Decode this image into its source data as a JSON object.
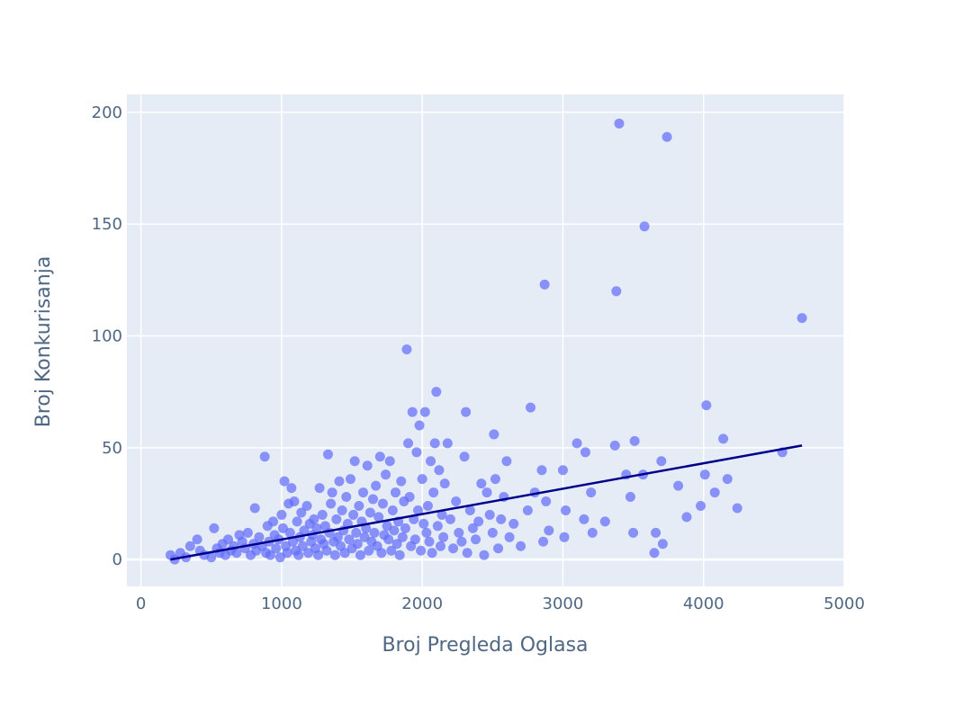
{
  "chart_data": {
    "type": "scatter",
    "xlabel": "Broj Pregleda Oglasa",
    "ylabel": "Broj Konkurisanja",
    "xlim": [
      -100,
      5000
    ],
    "ylim": [
      -12,
      208
    ],
    "x_ticks": [
      0,
      1000,
      2000,
      3000,
      4000,
      5000
    ],
    "x_tick_labels": [
      "0",
      "1000",
      "2000",
      "3000",
      "4000",
      "5000"
    ],
    "y_ticks": [
      0,
      50,
      100,
      150,
      200
    ],
    "y_tick_labels": [
      "0",
      "50",
      "100",
      "150",
      "200"
    ],
    "grid": true,
    "legend": "none",
    "colors": {
      "plot_bg": "#e5ecf6",
      "grid": "#ffffff",
      "points": "#636efa",
      "trend": "#00008b",
      "text": "#506784"
    },
    "series": [
      {
        "points": [
          [
            210,
            2
          ],
          [
            240,
            0
          ],
          [
            280,
            3
          ],
          [
            320,
            1
          ],
          [
            350,
            6
          ],
          [
            400,
            9
          ],
          [
            420,
            4
          ],
          [
            450,
            2
          ],
          [
            500,
            1
          ],
          [
            520,
            14
          ],
          [
            540,
            5
          ],
          [
            560,
            3
          ],
          [
            580,
            7
          ],
          [
            600,
            2
          ],
          [
            620,
            9
          ],
          [
            640,
            4
          ],
          [
            660,
            6
          ],
          [
            680,
            3
          ],
          [
            700,
            11
          ],
          [
            720,
            8
          ],
          [
            740,
            5
          ],
          [
            760,
            12
          ],
          [
            780,
            2
          ],
          [
            800,
            7
          ],
          [
            810,
            23
          ],
          [
            820,
            4
          ],
          [
            840,
            10
          ],
          [
            860,
            6
          ],
          [
            880,
            46
          ],
          [
            890,
            3
          ],
          [
            900,
            15
          ],
          [
            910,
            8
          ],
          [
            920,
            2
          ],
          [
            940,
            17
          ],
          [
            950,
            11
          ],
          [
            960,
            5
          ],
          [
            980,
            9
          ],
          [
            990,
            1
          ],
          [
            1000,
            20
          ],
          [
            1010,
            14
          ],
          [
            1020,
            35
          ],
          [
            1030,
            6
          ],
          [
            1040,
            3
          ],
          [
            1050,
            25
          ],
          [
            1060,
            12
          ],
          [
            1070,
            32
          ],
          [
            1080,
            8
          ],
          [
            1090,
            26
          ],
          [
            1100,
            4
          ],
          [
            1110,
            17
          ],
          [
            1120,
            2
          ],
          [
            1130,
            10
          ],
          [
            1140,
            21
          ],
          [
            1150,
            6
          ],
          [
            1160,
            13
          ],
          [
            1180,
            24
          ],
          [
            1190,
            3
          ],
          [
            1200,
            16
          ],
          [
            1210,
            8
          ],
          [
            1220,
            11
          ],
          [
            1230,
            18
          ],
          [
            1240,
            5
          ],
          [
            1250,
            14
          ],
          [
            1260,
            2
          ],
          [
            1270,
            32
          ],
          [
            1280,
            9
          ],
          [
            1290,
            20
          ],
          [
            1300,
            7
          ],
          [
            1310,
            15
          ],
          [
            1320,
            4
          ],
          [
            1330,
            47
          ],
          [
            1340,
            12
          ],
          [
            1350,
            25
          ],
          [
            1360,
            30
          ],
          [
            1370,
            8
          ],
          [
            1380,
            2
          ],
          [
            1390,
            18
          ],
          [
            1400,
            10
          ],
          [
            1410,
            35
          ],
          [
            1420,
            6
          ],
          [
            1430,
            22
          ],
          [
            1440,
            13
          ],
          [
            1450,
            3
          ],
          [
            1460,
            28
          ],
          [
            1470,
            16
          ],
          [
            1480,
            9
          ],
          [
            1490,
            36
          ],
          [
            1500,
            5
          ],
          [
            1510,
            20
          ],
          [
            1520,
            44
          ],
          [
            1530,
            12
          ],
          [
            1540,
            7
          ],
          [
            1550,
            24
          ],
          [
            1560,
            2
          ],
          [
            1570,
            17
          ],
          [
            1580,
            30
          ],
          [
            1590,
            10
          ],
          [
            1600,
            14
          ],
          [
            1610,
            42
          ],
          [
            1620,
            4
          ],
          [
            1630,
            21
          ],
          [
            1640,
            8
          ],
          [
            1650,
            27
          ],
          [
            1660,
            12
          ],
          [
            1670,
            33
          ],
          [
            1680,
            6
          ],
          [
            1690,
            19
          ],
          [
            1700,
            46
          ],
          [
            1710,
            3
          ],
          [
            1720,
            25
          ],
          [
            1730,
            11
          ],
          [
            1740,
            38
          ],
          [
            1750,
            15
          ],
          [
            1760,
            9
          ],
          [
            1770,
            44
          ],
          [
            1780,
            4
          ],
          [
            1790,
            22
          ],
          [
            1800,
            13
          ],
          [
            1810,
            30
          ],
          [
            1820,
            7
          ],
          [
            1830,
            17
          ],
          [
            1840,
            2
          ],
          [
            1850,
            35
          ],
          [
            1860,
            10
          ],
          [
            1870,
            26
          ],
          [
            1880,
            14
          ],
          [
            1890,
            94
          ],
          [
            1900,
            52
          ],
          [
            1910,
            28
          ],
          [
            1920,
            6
          ],
          [
            1930,
            66
          ],
          [
            1940,
            18
          ],
          [
            1950,
            9
          ],
          [
            1960,
            48
          ],
          [
            1970,
            22
          ],
          [
            1980,
            60
          ],
          [
            1990,
            4
          ],
          [
            2000,
            36
          ],
          [
            2010,
            16
          ],
          [
            2020,
            66
          ],
          [
            2030,
            12
          ],
          [
            2040,
            24
          ],
          [
            2050,
            8
          ],
          [
            2060,
            44
          ],
          [
            2070,
            3
          ],
          [
            2080,
            30
          ],
          [
            2090,
            52
          ],
          [
            2100,
            75
          ],
          [
            2110,
            15
          ],
          [
            2120,
            40
          ],
          [
            2130,
            6
          ],
          [
            2140,
            20
          ],
          [
            2150,
            10
          ],
          [
            2160,
            34
          ],
          [
            2180,
            52
          ],
          [
            2200,
            18
          ],
          [
            2220,
            5
          ],
          [
            2240,
            26
          ],
          [
            2260,
            12
          ],
          [
            2280,
            8
          ],
          [
            2300,
            46
          ],
          [
            2310,
            66
          ],
          [
            2320,
            3
          ],
          [
            2340,
            22
          ],
          [
            2360,
            14
          ],
          [
            2380,
            9
          ],
          [
            2400,
            17
          ],
          [
            2420,
            34
          ],
          [
            2440,
            2
          ],
          [
            2460,
            30
          ],
          [
            2480,
            20
          ],
          [
            2500,
            12
          ],
          [
            2510,
            56
          ],
          [
            2520,
            36
          ],
          [
            2540,
            5
          ],
          [
            2560,
            18
          ],
          [
            2580,
            28
          ],
          [
            2600,
            44
          ],
          [
            2620,
            10
          ],
          [
            2650,
            16
          ],
          [
            2700,
            6
          ],
          [
            2750,
            22
          ],
          [
            2770,
            68
          ],
          [
            2800,
            30
          ],
          [
            2850,
            40
          ],
          [
            2860,
            8
          ],
          [
            2870,
            123
          ],
          [
            2880,
            26
          ],
          [
            2900,
            13
          ],
          [
            3000,
            40
          ],
          [
            3010,
            10
          ],
          [
            3020,
            22
          ],
          [
            3100,
            52
          ],
          [
            3150,
            18
          ],
          [
            3160,
            48
          ],
          [
            3200,
            30
          ],
          [
            3210,
            12
          ],
          [
            3300,
            17
          ],
          [
            3370,
            51
          ],
          [
            3380,
            120
          ],
          [
            3400,
            195
          ],
          [
            3450,
            38
          ],
          [
            3480,
            28
          ],
          [
            3500,
            12
          ],
          [
            3510,
            53
          ],
          [
            3570,
            38
          ],
          [
            3580,
            149
          ],
          [
            3650,
            3
          ],
          [
            3660,
            12
          ],
          [
            3700,
            44
          ],
          [
            3710,
            7
          ],
          [
            3740,
            189
          ],
          [
            3820,
            33
          ],
          [
            3880,
            19
          ],
          [
            3980,
            24
          ],
          [
            4010,
            38
          ],
          [
            4020,
            69
          ],
          [
            4080,
            30
          ],
          [
            4140,
            54
          ],
          [
            4170,
            36
          ],
          [
            4240,
            23
          ],
          [
            4560,
            48
          ],
          [
            4700,
            108
          ]
        ]
      }
    ],
    "trendline": {
      "x": [
        210,
        4700
      ],
      "y": [
        0,
        51
      ]
    }
  }
}
